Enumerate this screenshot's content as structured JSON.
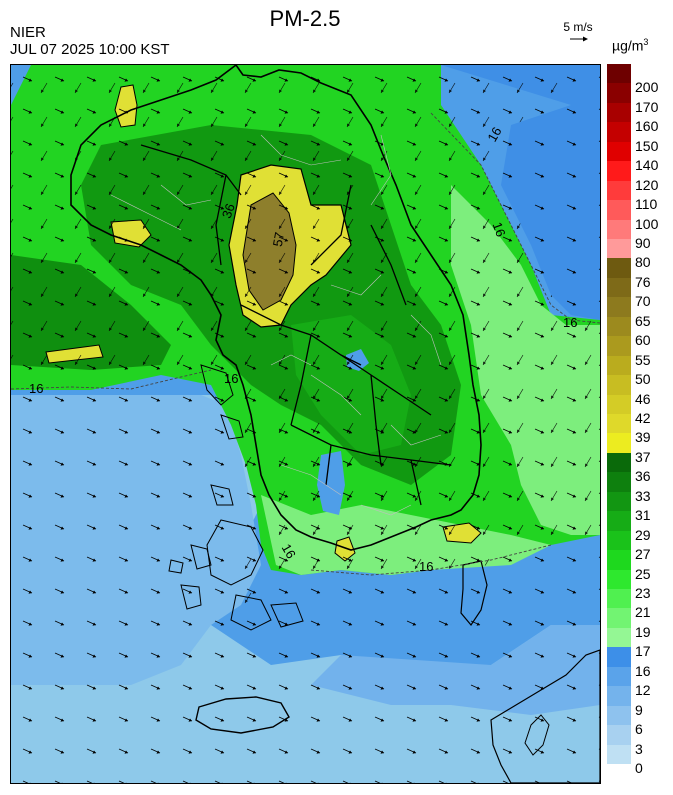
{
  "header": {
    "agency": "NIER",
    "timestamp": "JUL 07 2025 10:00 KST",
    "title": "PM-2.5",
    "wind_reference": "5 m/s",
    "unit": "µg/m",
    "unit_exponent": "3"
  },
  "map": {
    "contour_labels": [
      "16",
      "16",
      "16",
      "16",
      "16",
      "16",
      "16",
      "36",
      "57"
    ],
    "palette": {
      "sea_low": "#8ec9ea",
      "sea_mid": "#4f9ee8",
      "green_light": "#7dee7d",
      "green": "#22d422",
      "green_dark": "#119911",
      "yellow": "#e0e035",
      "olive": "#8e7f2c",
      "border": "#000000"
    }
  },
  "legend": {
    "items": [
      {
        "label": "200",
        "color": "#6e0000"
      },
      {
        "label": "170",
        "color": "#8a0000"
      },
      {
        "label": "160",
        "color": "#a80000"
      },
      {
        "label": "150",
        "color": "#c40000"
      },
      {
        "label": "140",
        "color": "#e00000"
      },
      {
        "label": "120",
        "color": "#ff1a1a"
      },
      {
        "label": "110",
        "color": "#ff3b3b"
      },
      {
        "label": "100",
        "color": "#ff5a5a"
      },
      {
        "label": "90",
        "color": "#ff7a7a"
      },
      {
        "label": "80",
        "color": "#ff9a9a"
      },
      {
        "label": "76",
        "color": "#6e5a10"
      },
      {
        "label": "70",
        "color": "#7e6a18"
      },
      {
        "label": "65",
        "color": "#8d7a1e"
      },
      {
        "label": "60",
        "color": "#9c8a1e"
      },
      {
        "label": "55",
        "color": "#ab9a1e"
      },
      {
        "label": "50",
        "color": "#baac1e"
      },
      {
        "label": "46",
        "color": "#c8bd22"
      },
      {
        "label": "42",
        "color": "#d4cc26"
      },
      {
        "label": "39",
        "color": "#dfd92a"
      },
      {
        "label": "37",
        "color": "#ecec20"
      },
      {
        "label": "36",
        "color": "#0a6a0a"
      },
      {
        "label": "33",
        "color": "#0e800e"
      },
      {
        "label": "31",
        "color": "#129612"
      },
      {
        "label": "29",
        "color": "#16ac16"
      },
      {
        "label": "27",
        "color": "#1ac21a"
      },
      {
        "label": "25",
        "color": "#1ed81e"
      },
      {
        "label": "23",
        "color": "#2ee82e"
      },
      {
        "label": "21",
        "color": "#50f050"
      },
      {
        "label": "19",
        "color": "#72f472"
      },
      {
        "label": "17",
        "color": "#94f794"
      },
      {
        "label": "16",
        "color": "#3d8fe8"
      },
      {
        "label": "12",
        "color": "#5aa3ea"
      },
      {
        "label": "9",
        "color": "#74b3ec"
      },
      {
        "label": "6",
        "color": "#8ec2ee"
      },
      {
        "label": "3",
        "color": "#a8d1f0"
      },
      {
        "label": "0",
        "color": "#bfe0f3"
      }
    ]
  }
}
